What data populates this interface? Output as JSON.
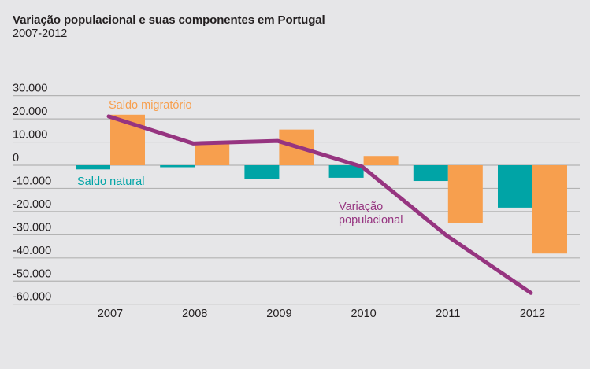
{
  "header": {
    "title": "Variação populacional e suas componentes em Portugal",
    "subtitle": "2007-2012"
  },
  "colors": {
    "background": "#e6e6e8",
    "saldo_natural": "#00a4a6",
    "saldo_migratorio": "#f79f4e",
    "variacao_populacional": "#963480",
    "gridline": "#b3b3b3",
    "text": "#231f20"
  },
  "chart_data": {
    "type": "bar",
    "title": "Variação populacional e suas componentes em Portugal",
    "subtitle": "2007-2012",
    "xlabel": "",
    "ylabel": "",
    "categories": [
      "2007",
      "2008",
      "2009",
      "2010",
      "2011",
      "2012"
    ],
    "ylim": [
      -60000,
      30000
    ],
    "yticks": [
      30000,
      20000,
      10000,
      0,
      -10000,
      -20000,
      -30000,
      -40000,
      -50000,
      -60000
    ],
    "ytick_labels": [
      "30.000",
      "20.000",
      "10.000",
      "0",
      "-10.000",
      "-20.000",
      "-30.000",
      "-40.000",
      "-50.000",
      "-60.000"
    ],
    "grid": true,
    "legend": "inline-annotations",
    "series": [
      {
        "name": "Saldo natural",
        "type": "bar",
        "values": [
          -1800,
          -600,
          -5800,
          -5400,
          -6800,
          -18300
        ]
      },
      {
        "name": "Saldo migratório",
        "type": "bar",
        "values": [
          21800,
          9400,
          15400,
          4000,
          -24800,
          -38100
        ]
      },
      {
        "name": "Variação populacional",
        "type": "line",
        "values": [
          21100,
          9400,
          10500,
          -600,
          -30300,
          -55100
        ]
      }
    ],
    "annotations": [
      {
        "text": "Saldo migratório",
        "series": "Saldo migratório",
        "near": "2007"
      },
      {
        "text": "Saldo natural",
        "series": "Saldo natural",
        "near": "2007"
      },
      {
        "text_lines": [
          "Variação",
          "populacional"
        ],
        "series": "Variação populacional",
        "near": "2010"
      }
    ]
  }
}
